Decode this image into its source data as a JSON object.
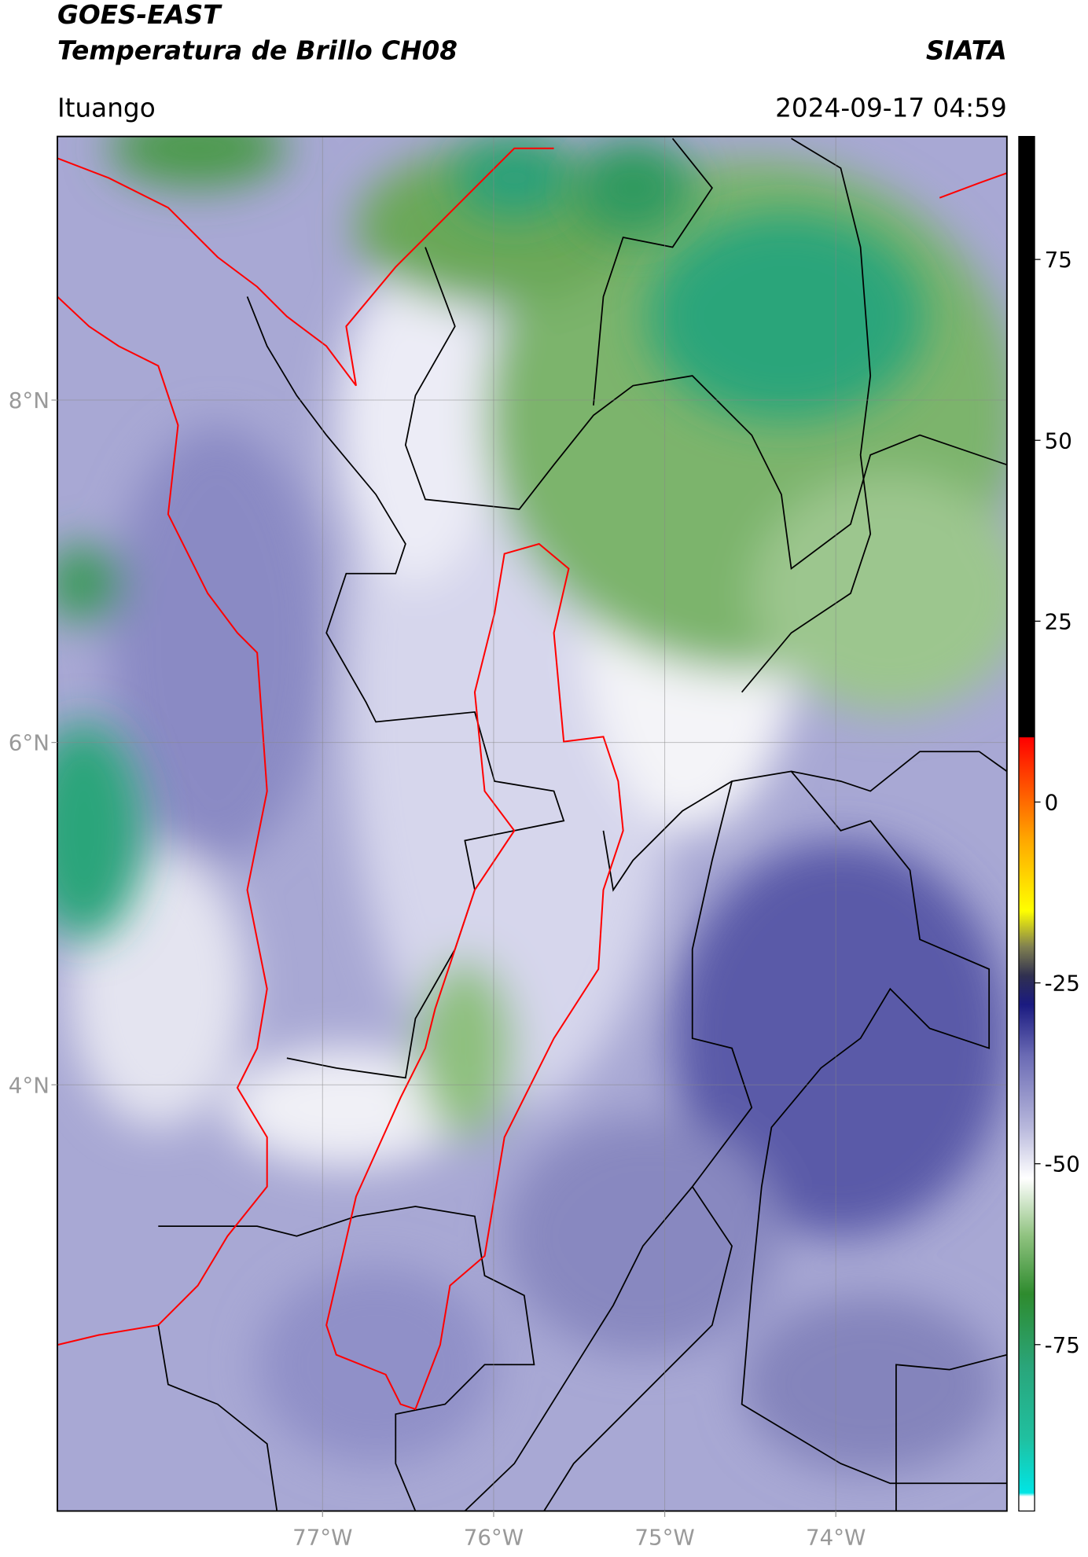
{
  "header": {
    "title": "GOES-EAST",
    "subtitle": "Temperatura de Brillo CH08",
    "credit": "SIATA",
    "location": "Ituango",
    "datetime": "2024-09-17 04:59"
  },
  "map": {
    "xlim": [
      -78.55,
      -73.0
    ],
    "ylim": [
      1.51,
      9.54
    ],
    "xticks": [
      {
        "value": -77,
        "label": "77°W"
      },
      {
        "value": -76,
        "label": "76°W"
      },
      {
        "value": -75,
        "label": "75°W"
      },
      {
        "value": -74,
        "label": "74°W"
      }
    ],
    "yticks": [
      {
        "value": 4,
        "label": "4°N"
      },
      {
        "value": 6,
        "label": "6°N"
      },
      {
        "value": 8,
        "label": "8°N"
      }
    ],
    "grid": true
  },
  "colorbar": {
    "lim": [
      -98,
      92
    ],
    "ticks": [
      -75,
      -50,
      -25,
      0,
      25,
      50,
      75
    ],
    "colors": [
      {
        "value": -98,
        "color": "#ffffff"
      },
      {
        "value": -96,
        "color": "#ffffff"
      },
      {
        "value": -95.5,
        "color": "#00e5e5"
      },
      {
        "value": -88,
        "color": "#20c0a0"
      },
      {
        "value": -78,
        "color": "#2aa57a"
      },
      {
        "value": -68,
        "color": "#2e8b2e"
      },
      {
        "value": -60,
        "color": "#8fc27f"
      },
      {
        "value": -52,
        "color": "#ffffff"
      },
      {
        "value": -45,
        "color": "#b8b8dc"
      },
      {
        "value": -35,
        "color": "#6a6ab4"
      },
      {
        "value": -28,
        "color": "#1a1a80"
      },
      {
        "value": -24,
        "color": "#303050"
      },
      {
        "value": -20,
        "color": "#808050"
      },
      {
        "value": -15,
        "color": "#ffff00"
      },
      {
        "value": -5,
        "color": "#ffa500"
      },
      {
        "value": 5,
        "color": "#ff3000"
      },
      {
        "value": 8.9,
        "color": "#ff0000"
      },
      {
        "value": 9,
        "color": "#000000"
      },
      {
        "value": 92,
        "color": "#000000"
      }
    ]
  }
}
